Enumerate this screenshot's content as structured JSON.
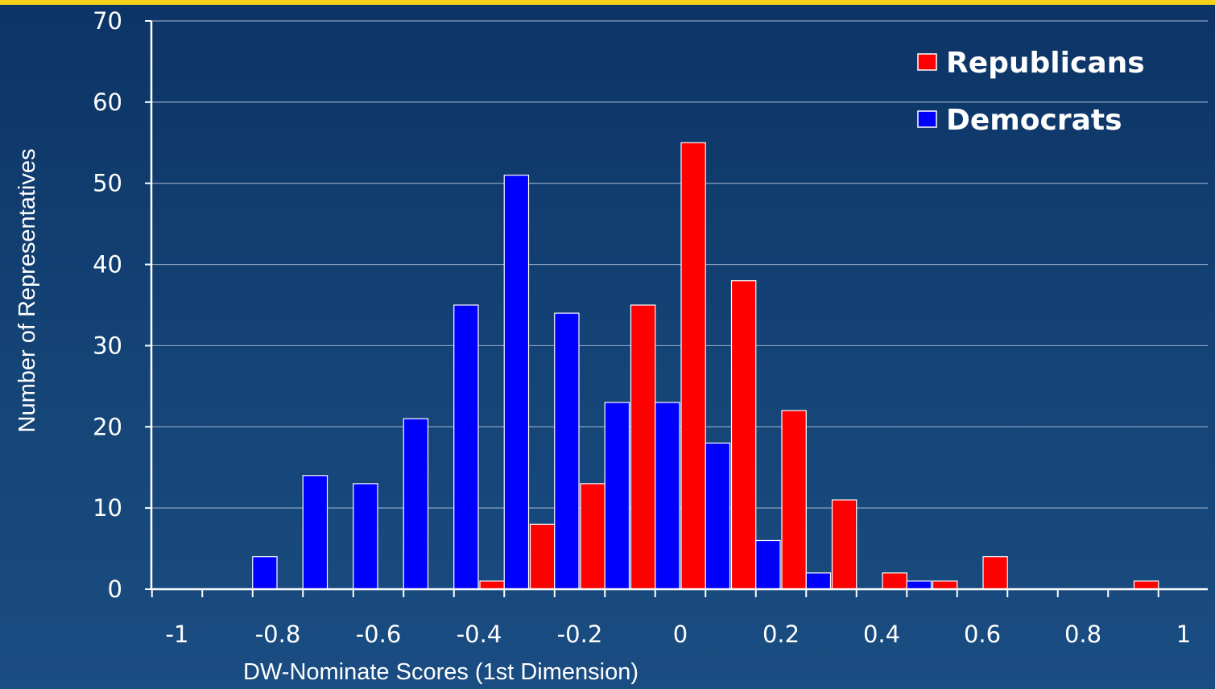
{
  "chart_data": {
    "type": "bar",
    "xlabel": "DW-Nominate Scores (1st Dimension)",
    "ylabel": "Number of Representatives",
    "xlim": [
      -1,
      1
    ],
    "ylim": [
      0,
      70
    ],
    "x_ticks": [
      -1,
      -0.8,
      -0.6,
      -0.4,
      -0.2,
      0,
      0.2,
      0.4,
      0.6,
      0.8,
      1
    ],
    "y_ticks": [
      0,
      10,
      20,
      30,
      40,
      50,
      60,
      70
    ],
    "grid": true,
    "legend_position": "top-right",
    "bin_width": 0.1,
    "series": [
      {
        "name": "Republicans",
        "color": "#ff0000",
        "bins": [
          {
            "x": -0.35,
            "value": 1
          },
          {
            "x": -0.25,
            "value": 8
          },
          {
            "x": -0.15,
            "value": 13
          },
          {
            "x": -0.05,
            "value": 35
          },
          {
            "x": 0.05,
            "value": 55
          },
          {
            "x": 0.15,
            "value": 38
          },
          {
            "x": 0.25,
            "value": 22
          },
          {
            "x": 0.35,
            "value": 11
          },
          {
            "x": 0.45,
            "value": 2
          },
          {
            "x": 0.55,
            "value": 1
          },
          {
            "x": 0.65,
            "value": 4
          },
          {
            "x": 0.95,
            "value": 1
          }
        ]
      },
      {
        "name": "Democrats",
        "color": "#0000ff",
        "bins": [
          {
            "x": -0.85,
            "value": 4
          },
          {
            "x": -0.75,
            "value": 14
          },
          {
            "x": -0.65,
            "value": 13
          },
          {
            "x": -0.55,
            "value": 21
          },
          {
            "x": -0.45,
            "value": 35
          },
          {
            "x": -0.35,
            "value": 51
          },
          {
            "x": -0.25,
            "value": 34
          },
          {
            "x": -0.15,
            "value": 23
          },
          {
            "x": -0.05,
            "value": 23
          },
          {
            "x": 0.05,
            "value": 18
          },
          {
            "x": 0.15,
            "value": 6
          },
          {
            "x": 0.25,
            "value": 2
          },
          {
            "x": 0.45,
            "value": 1
          }
        ]
      }
    ]
  }
}
